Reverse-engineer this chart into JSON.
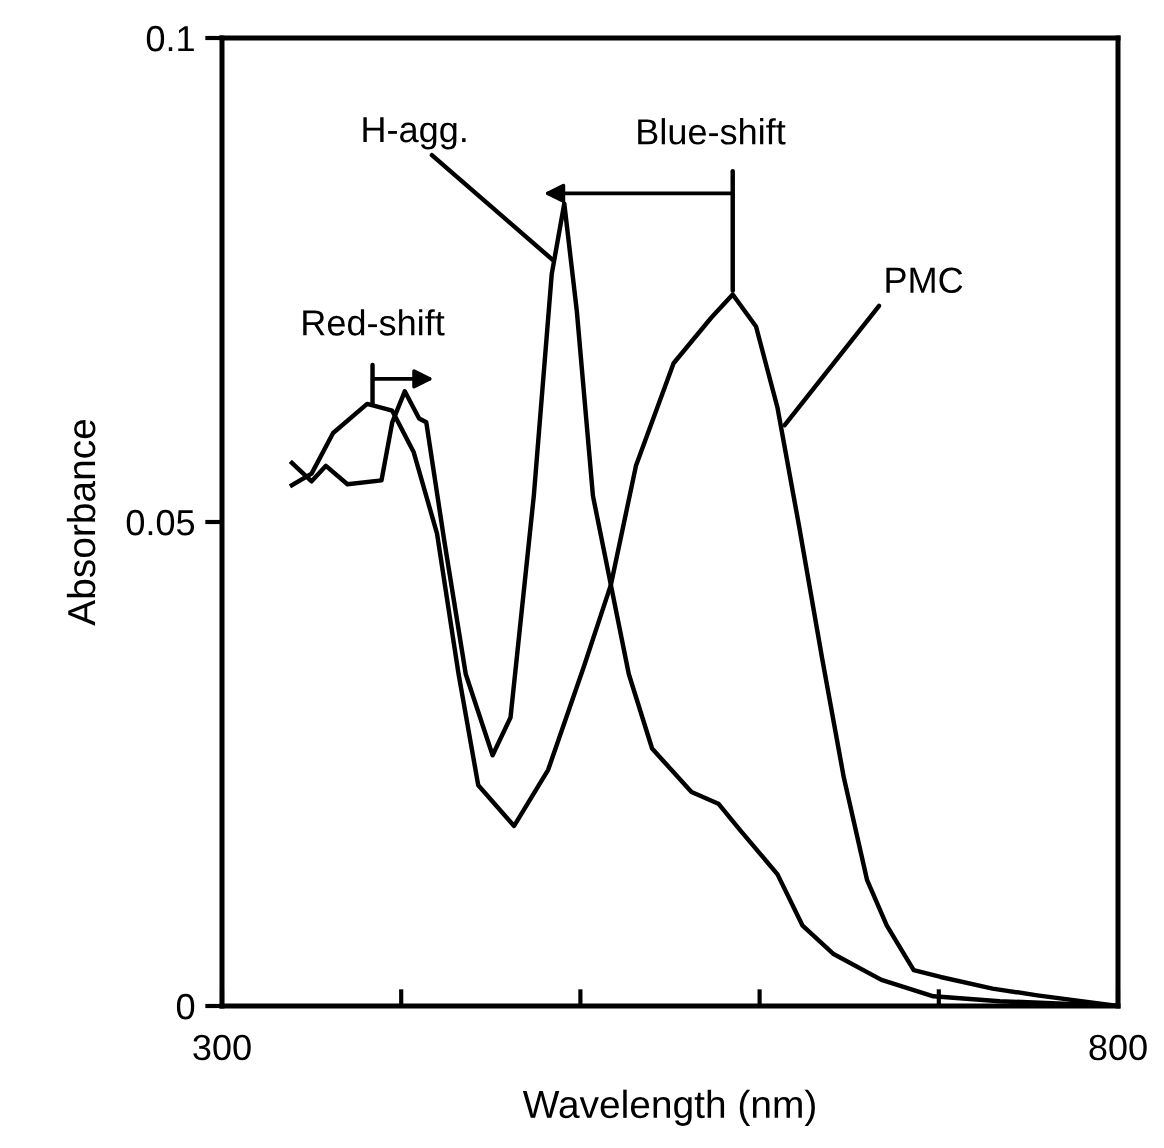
{
  "chart_data": {
    "type": "line",
    "xlabel": "Wavelength (nm)",
    "ylabel": "Absorbance",
    "xlim": [
      300,
      800
    ],
    "ylim": [
      0,
      0.1
    ],
    "xticks": [
      300,
      {
        "value": 400,
        "label": null
      },
      {
        "value": 500,
        "label": null
      },
      {
        "value": 600,
        "label": null
      },
      {
        "value": 700,
        "label": null
      },
      800
    ],
    "yticks": [
      0,
      0.05,
      0.1
    ],
    "grid": false,
    "legend": false,
    "marker": "none",
    "line_style": "solid",
    "series": [
      {
        "color": "#000000",
        "x": [
          339,
          350,
          362,
          381,
          395,
          407,
          420,
          432,
          443,
          463,
          482,
          502,
          517,
          531,
          552,
          573,
          585,
          598,
          610,
          622,
          635,
          647,
          660,
          671,
          686,
          701,
          730,
          755,
          800
        ],
        "values": [
          0.0538,
          0.055,
          0.0592,
          0.0622,
          0.0615,
          0.0572,
          0.0488,
          0.0343,
          0.0228,
          0.0186,
          0.0244,
          0.0351,
          0.0435,
          0.0558,
          0.0664,
          0.0711,
          0.0735,
          0.0702,
          0.0618,
          0.0496,
          0.0358,
          0.0236,
          0.013,
          0.0083,
          0.0037,
          0.003,
          0.0018,
          0.0011,
          0.0
        ]
      },
      {
        "color": "#000000",
        "x": [
          339,
          350,
          358,
          370,
          389,
          395,
          402,
          410,
          414,
          424,
          436,
          451,
          461,
          474,
          484,
          491,
          498,
          507,
          517,
          527,
          540,
          562,
          577,
          589,
          610,
          624,
          641,
          668,
          697,
          734,
          800
        ],
        "values": [
          0.0561,
          0.0542,
          0.0558,
          0.0539,
          0.0543,
          0.0603,
          0.0635,
          0.0607,
          0.0603,
          0.0481,
          0.0343,
          0.0259,
          0.0298,
          0.0527,
          0.0756,
          0.0829,
          0.0718,
          0.0527,
          0.0435,
          0.0343,
          0.0266,
          0.0221,
          0.0209,
          0.0182,
          0.0136,
          0.0083,
          0.0054,
          0.0027,
          0.001,
          0.0005,
          0.0
        ]
      }
    ],
    "annotations": [
      {
        "text": "Red-shift",
        "x": 384,
        "y": 0.0622
      },
      {
        "text": "H-agg.",
        "x": 485,
        "y": 0.077
      },
      {
        "text": "Blue-shift",
        "x": 585,
        "y": 0.0739
      },
      {
        "text": "PMC",
        "x": 614,
        "y": 0.06
      }
    ]
  }
}
